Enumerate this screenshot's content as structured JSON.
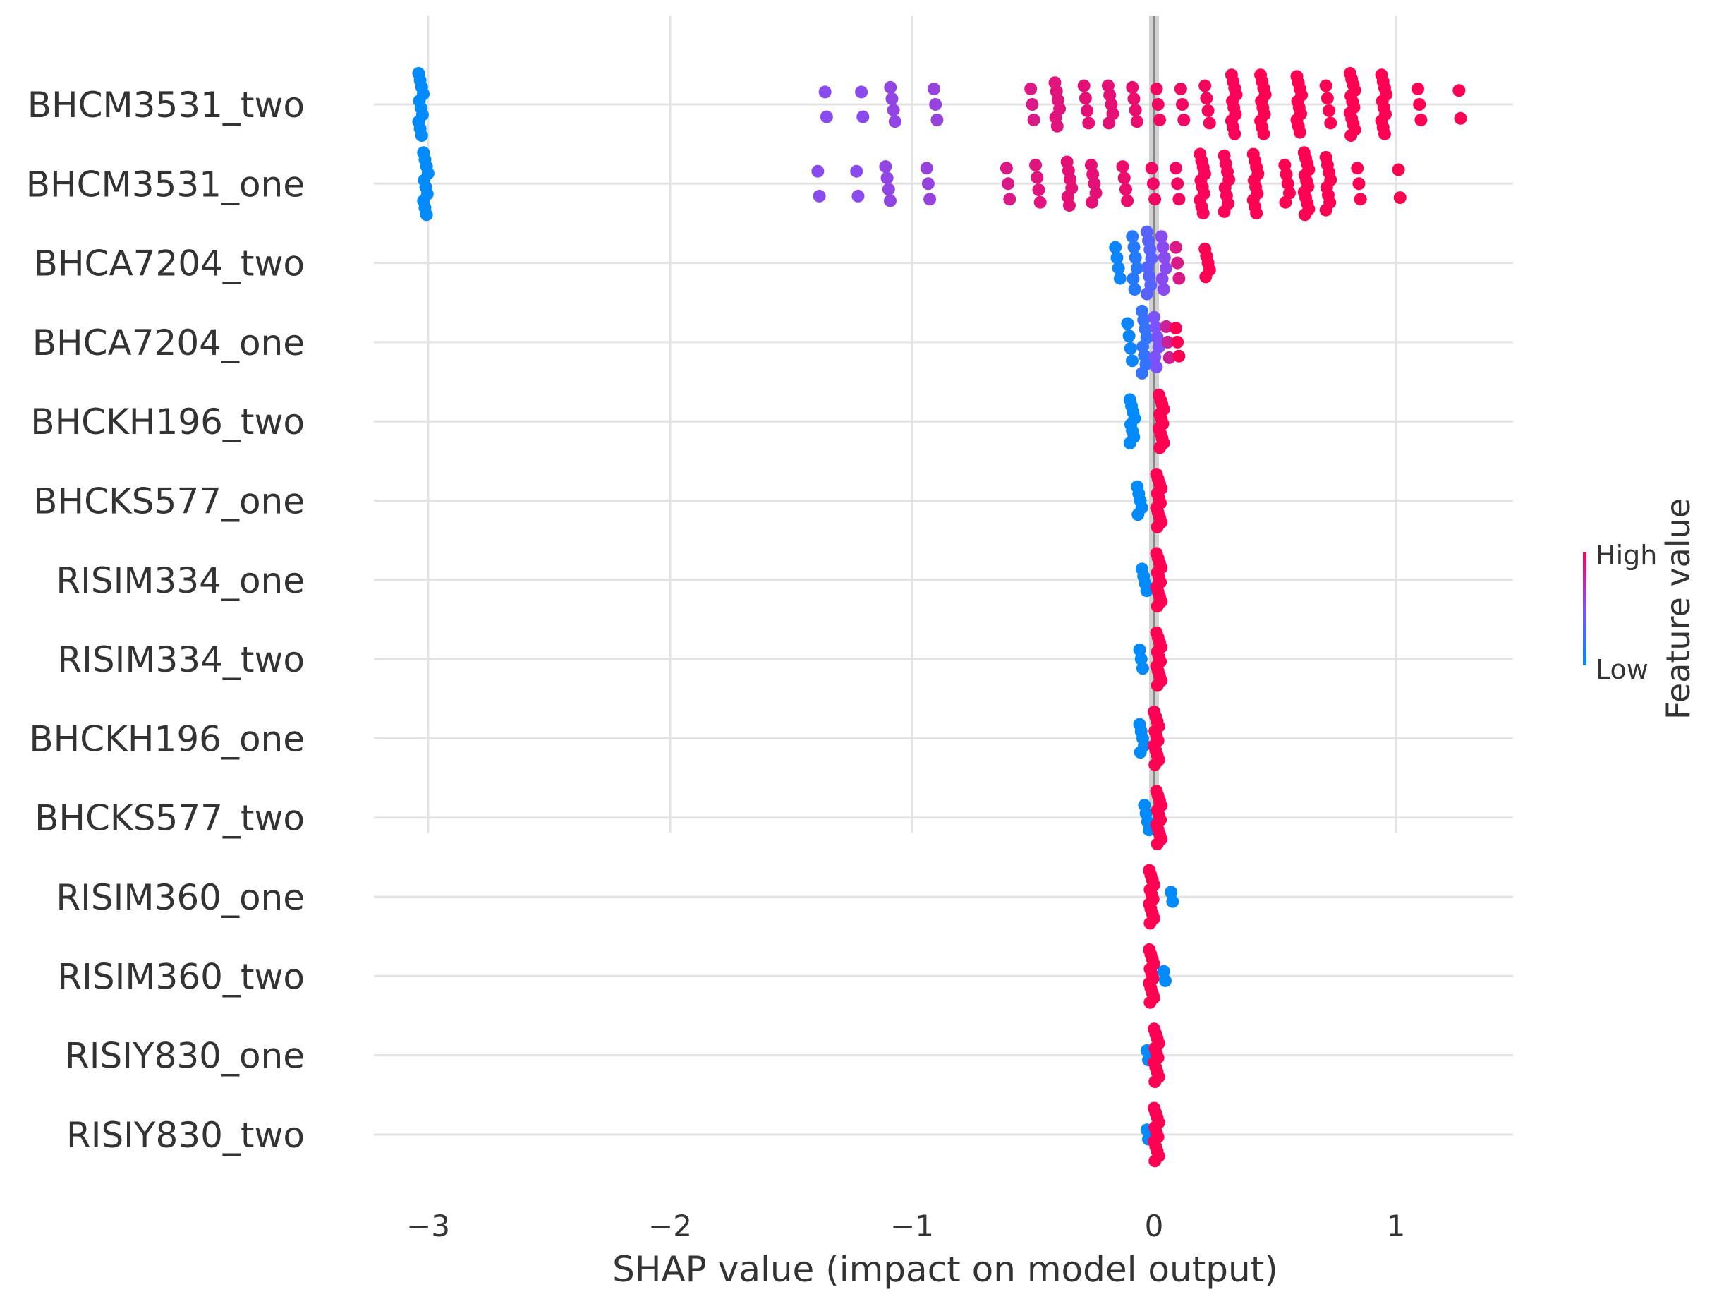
{
  "chart_data": {
    "type": "scatter",
    "subtype": "shap-beeswarm",
    "title": "",
    "xlabel": "SHAP value (impact on model output)",
    "xlim": [
      -3.25,
      1.5
    ],
    "xticks": [
      {
        "value": -3,
        "label": "−3"
      },
      {
        "value": -2,
        "label": "−2"
      },
      {
        "value": -1,
        "label": "−1"
      },
      {
        "value": 0,
        "label": "0"
      },
      {
        "value": 1,
        "label": "1"
      }
    ],
    "colorbar": {
      "title": "Feature value",
      "high_label": "High",
      "low_label": "Low",
      "low_color": "#008afb",
      "high_color": "#ff0052"
    },
    "features": [
      {
        "name": "BHCM3531_two",
        "clusters": [
          {
            "x": -3.03,
            "n": 10,
            "spread": 1.0,
            "fv": 0.0
          },
          {
            "x": -1.35,
            "n": 2,
            "spread": 0.4,
            "fv": 0.55
          },
          {
            "x": -1.2,
            "n": 2,
            "spread": 0.4,
            "fv": 0.55
          },
          {
            "x": -1.08,
            "n": 4,
            "spread": 0.55,
            "fv": 0.58
          },
          {
            "x": -0.9,
            "n": 3,
            "spread": 0.5,
            "fv": 0.6
          },
          {
            "x": -0.5,
            "n": 3,
            "spread": 0.5,
            "fv": 0.85
          },
          {
            "x": -0.4,
            "n": 6,
            "spread": 0.7,
            "fv": 0.88
          },
          {
            "x": -0.28,
            "n": 4,
            "spread": 0.6,
            "fv": 0.9
          },
          {
            "x": -0.18,
            "n": 5,
            "spread": 0.6,
            "fv": 0.9
          },
          {
            "x": -0.08,
            "n": 4,
            "spread": 0.55,
            "fv": 0.92
          },
          {
            "x": 0.02,
            "n": 3,
            "spread": 0.5,
            "fv": 0.95
          },
          {
            "x": 0.12,
            "n": 3,
            "spread": 0.5,
            "fv": 0.95
          },
          {
            "x": 0.22,
            "n": 4,
            "spread": 0.6,
            "fv": 0.97
          },
          {
            "x": 0.33,
            "n": 10,
            "spread": 0.95,
            "fv": 0.98
          },
          {
            "x": 0.45,
            "n": 10,
            "spread": 0.95,
            "fv": 1.0
          },
          {
            "x": 0.6,
            "n": 10,
            "spread": 0.9,
            "fv": 1.0
          },
          {
            "x": 0.72,
            "n": 4,
            "spread": 0.6,
            "fv": 1.0
          },
          {
            "x": 0.82,
            "n": 12,
            "spread": 1.0,
            "fv": 1.0
          },
          {
            "x": 0.95,
            "n": 10,
            "spread": 0.95,
            "fv": 1.0
          },
          {
            "x": 1.1,
            "n": 3,
            "spread": 0.5,
            "fv": 1.0
          },
          {
            "x": 1.27,
            "n": 2,
            "spread": 0.45,
            "fv": 1.0
          }
        ]
      },
      {
        "name": "BHCM3531_one",
        "clusters": [
          {
            "x": -3.01,
            "n": 10,
            "spread": 1.0,
            "fv": 0.0
          },
          {
            "x": -1.38,
            "n": 2,
            "spread": 0.4,
            "fv": 0.55
          },
          {
            "x": -1.22,
            "n": 2,
            "spread": 0.4,
            "fv": 0.55
          },
          {
            "x": -1.1,
            "n": 4,
            "spread": 0.55,
            "fv": 0.58
          },
          {
            "x": -0.93,
            "n": 3,
            "spread": 0.5,
            "fv": 0.6
          },
          {
            "x": -0.6,
            "n": 3,
            "spread": 0.5,
            "fv": 0.85
          },
          {
            "x": -0.48,
            "n": 4,
            "spread": 0.6,
            "fv": 0.88
          },
          {
            "x": -0.35,
            "n": 6,
            "spread": 0.7,
            "fv": 0.9
          },
          {
            "x": -0.25,
            "n": 5,
            "spread": 0.6,
            "fv": 0.9
          },
          {
            "x": -0.12,
            "n": 4,
            "spread": 0.55,
            "fv": 0.92
          },
          {
            "x": 0.0,
            "n": 3,
            "spread": 0.5,
            "fv": 0.95
          },
          {
            "x": 0.1,
            "n": 3,
            "spread": 0.5,
            "fv": 0.95
          },
          {
            "x": 0.2,
            "n": 10,
            "spread": 0.95,
            "fv": 0.98
          },
          {
            "x": 0.3,
            "n": 8,
            "spread": 0.9,
            "fv": 0.98
          },
          {
            "x": 0.42,
            "n": 10,
            "spread": 0.95,
            "fv": 1.0
          },
          {
            "x": 0.55,
            "n": 5,
            "spread": 0.6,
            "fv": 1.0
          },
          {
            "x": 0.63,
            "n": 12,
            "spread": 1.0,
            "fv": 1.0
          },
          {
            "x": 0.72,
            "n": 8,
            "spread": 0.85,
            "fv": 1.0
          },
          {
            "x": 0.85,
            "n": 3,
            "spread": 0.5,
            "fv": 1.0
          },
          {
            "x": 1.02,
            "n": 2,
            "spread": 0.45,
            "fv": 1.0
          }
        ]
      },
      {
        "name": "BHCA7204_two",
        "clusters": [
          {
            "x": -0.15,
            "n": 4,
            "spread": 0.5,
            "fv": 0.05
          },
          {
            "x": -0.08,
            "n": 6,
            "spread": 0.85,
            "fv": 0.15
          },
          {
            "x": -0.02,
            "n": 8,
            "spread": 1.0,
            "fv": 0.35
          },
          {
            "x": 0.04,
            "n": 6,
            "spread": 0.85,
            "fv": 0.55
          },
          {
            "x": 0.1,
            "n": 3,
            "spread": 0.5,
            "fv": 0.85
          },
          {
            "x": 0.22,
            "n": 5,
            "spread": 0.45,
            "fv": 1.0
          }
        ]
      },
      {
        "name": "BHCA7204_one",
        "clusters": [
          {
            "x": -0.1,
            "n": 4,
            "spread": 0.6,
            "fv": 0.05
          },
          {
            "x": -0.04,
            "n": 8,
            "spread": 1.0,
            "fv": 0.2
          },
          {
            "x": 0.01,
            "n": 6,
            "spread": 0.8,
            "fv": 0.5
          },
          {
            "x": 0.06,
            "n": 3,
            "spread": 0.5,
            "fv": 0.8
          },
          {
            "x": 0.1,
            "n": 3,
            "spread": 0.45,
            "fv": 1.0
          }
        ]
      },
      {
        "name": "BHCKH196_two",
        "clusters": [
          {
            "x": -0.09,
            "n": 8,
            "spread": 0.7,
            "fv": 0.0
          },
          {
            "x": 0.03,
            "n": 12,
            "spread": 0.85,
            "fv": 1.0
          }
        ]
      },
      {
        "name": "BHCKS577_one",
        "clusters": [
          {
            "x": -0.06,
            "n": 5,
            "spread": 0.45,
            "fv": 0.0
          },
          {
            "x": 0.02,
            "n": 12,
            "spread": 0.85,
            "fv": 1.0
          }
        ]
      },
      {
        "name": "RISIM334_one",
        "clusters": [
          {
            "x": -0.04,
            "n": 4,
            "spread": 0.35,
            "fv": 0.0
          },
          {
            "x": 0.02,
            "n": 12,
            "spread": 0.85,
            "fv": 1.0
          }
        ]
      },
      {
        "name": "RISIM334_two",
        "clusters": [
          {
            "x": -0.05,
            "n": 3,
            "spread": 0.3,
            "fv": 0.0
          },
          {
            "x": 0.02,
            "n": 12,
            "spread": 0.85,
            "fv": 1.0
          }
        ]
      },
      {
        "name": "BHCKH196_one",
        "clusters": [
          {
            "x": -0.05,
            "n": 5,
            "spread": 0.45,
            "fv": 0.0
          },
          {
            "x": 0.01,
            "n": 12,
            "spread": 0.85,
            "fv": 1.0
          }
        ]
      },
      {
        "name": "BHCKS577_two",
        "clusters": [
          {
            "x": -0.03,
            "n": 4,
            "spread": 0.4,
            "fv": 0.0
          },
          {
            "x": 0.02,
            "n": 12,
            "spread": 0.85,
            "fv": 1.0
          }
        ]
      },
      {
        "name": "RISIM360_one",
        "clusters": [
          {
            "x": -0.01,
            "n": 12,
            "spread": 0.85,
            "fv": 1.0
          },
          {
            "x": 0.08,
            "n": 2,
            "spread": 0.15,
            "fv": 0.0
          }
        ]
      },
      {
        "name": "RISIM360_two",
        "clusters": [
          {
            "x": -0.01,
            "n": 12,
            "spread": 0.85,
            "fv": 1.0
          },
          {
            "x": 0.05,
            "n": 2,
            "spread": 0.15,
            "fv": 0.0
          }
        ]
      },
      {
        "name": "RISIY830_one",
        "clusters": [
          {
            "x": -0.02,
            "n": 2,
            "spread": 0.15,
            "fv": 0.0
          },
          {
            "x": 0.01,
            "n": 12,
            "spread": 0.85,
            "fv": 1.0
          }
        ]
      },
      {
        "name": "RISIY830_two",
        "clusters": [
          {
            "x": -0.02,
            "n": 2,
            "spread": 0.15,
            "fv": 0.0
          },
          {
            "x": 0.01,
            "n": 12,
            "spread": 0.85,
            "fv": 1.0
          }
        ]
      }
    ]
  }
}
